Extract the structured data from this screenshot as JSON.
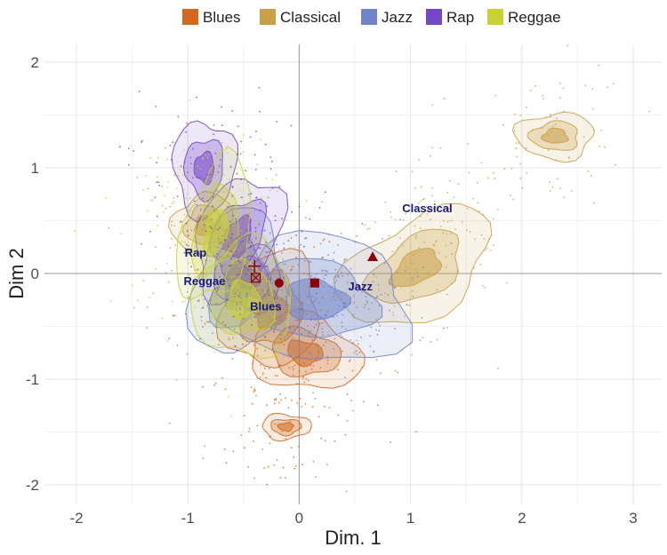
{
  "chart_data": {
    "type": "scatter",
    "title": "",
    "xlabel": "Dim. 1",
    "ylabel": "Dim 2",
    "xlim": [
      -2.2,
      3.2
    ],
    "ylim": [
      -2.2,
      2.2
    ],
    "x_ticks": [
      -2,
      -1,
      0,
      1,
      2,
      3
    ],
    "y_ticks": [
      -2,
      -1,
      0,
      1,
      2
    ],
    "grid": true,
    "legend_position": "top",
    "series": [
      {
        "name": "Blues",
        "color": "#d2691e",
        "density_centers": [
          [
            -0.3,
            -0.2
          ],
          [
            -0.2,
            -0.55
          ],
          [
            0.1,
            -0.8
          ],
          [
            -0.15,
            -1.5
          ]
        ]
      },
      {
        "name": "Classical",
        "color": "#c9a04a",
        "density_centers": [
          [
            1.0,
            0.0
          ],
          [
            1.35,
            0.45
          ],
          [
            2.3,
            1.3
          ],
          [
            -0.9,
            0.4
          ]
        ]
      },
      {
        "name": "Jazz",
        "color": "#6f84c9",
        "density_centers": [
          [
            0.2,
            -0.2
          ],
          [
            0.55,
            -0.3
          ],
          [
            -0.5,
            -0.1
          ]
        ]
      },
      {
        "name": "Rap",
        "color": "#7446c9",
        "density_centers": [
          [
            -0.85,
            1.05
          ],
          [
            -0.55,
            0.35
          ],
          [
            -0.35,
            0.05
          ]
        ]
      },
      {
        "name": "Reggae",
        "color": "#c9d134",
        "density_centers": [
          [
            -0.45,
            -0.25
          ],
          [
            -0.7,
            0.35
          ],
          [
            -0.9,
            0.8
          ]
        ]
      }
    ],
    "group_labels": [
      {
        "text": "Blues",
        "x": -0.3,
        "y": -0.35
      },
      {
        "text": "Classical",
        "x": 1.15,
        "y": 0.58
      },
      {
        "text": "Jazz",
        "x": 0.55,
        "y": -0.16
      },
      {
        "text": "Rap",
        "x": -0.93,
        "y": 0.16
      },
      {
        "text": "Reggae",
        "x": -0.85,
        "y": -0.11
      }
    ],
    "group_means": [
      {
        "name": "Blues",
        "shape": "square",
        "x": 0.14,
        "y": -0.09
      },
      {
        "name": "Classical",
        "shape": "triangle",
        "x": 0.66,
        "y": 0.16
      },
      {
        "name": "Jazz",
        "shape": "circle",
        "x": -0.18,
        "y": -0.09
      },
      {
        "name": "Rap",
        "shape": "plus",
        "x": -0.4,
        "y": 0.07
      },
      {
        "name": "Reggae",
        "shape": "boxed-x",
        "x": -0.39,
        "y": -0.04
      }
    ]
  }
}
